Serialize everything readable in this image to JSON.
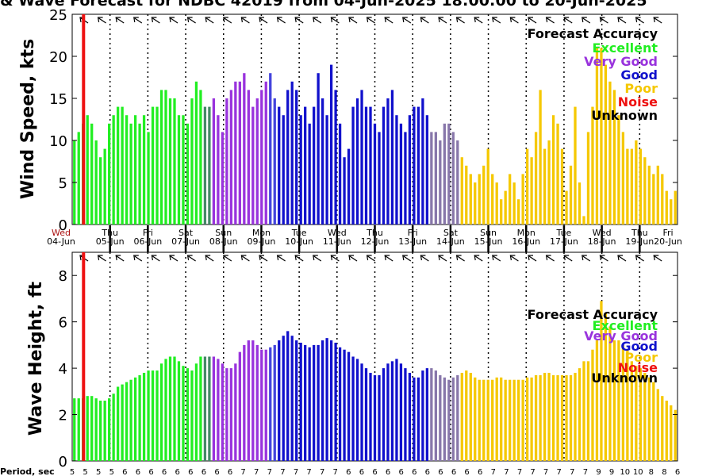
{
  "title": "& Wave Forecast for NDBC 42019 from 04-Jun-2025 18:00:00 to 20-Jun-2025",
  "colors": {
    "Excellent": "#22ee22",
    "Very Good": "#9933dd",
    "Good": "#1111cc",
    "Poor": "#f5c800",
    "Noise": "#ee1111",
    "Unknown": "#000000",
    "transition_eg_vg": "#448866",
    "transition_vg_g": "#4444dd",
    "transition_g_p": "#8877aa",
    "marker": "#ee1111"
  },
  "legend": {
    "title": "Forecast Accuracy",
    "entries": [
      {
        "label": "Excellent",
        "color": "#22ee22"
      },
      {
        "label": "Very Good",
        "color": "#9933dd"
      },
      {
        "label": "Good",
        "color": "#1111cc"
      },
      {
        "label": "Poor",
        "color": "#f5c800"
      },
      {
        "label": "Noise",
        "color": "#ee1111"
      },
      {
        "label": "Unknown",
        "color": "#000000"
      }
    ]
  },
  "chart_data": [
    {
      "type": "bar",
      "ylabel": "Wind Speed, kts",
      "ylim": [
        0,
        25
      ],
      "yticks": [
        0,
        5,
        10,
        15,
        20,
        25
      ],
      "xlim_days": [
        0,
        16
      ],
      "marker_day": 0.3,
      "day_labels": [
        {
          "day": "Wed",
          "date": "04-Jun"
        },
        {
          "day": "Thu",
          "date": "05-Jun"
        },
        {
          "day": "Fri",
          "date": "06-Jun"
        },
        {
          "day": "Sat",
          "date": "07-Jun"
        },
        {
          "day": "Sun",
          "date": "08-Jun"
        },
        {
          "day": "Mon",
          "date": "09-Jun"
        },
        {
          "day": "Tue",
          "date": "10-Jun"
        },
        {
          "day": "Wed",
          "date": "11-Jun"
        },
        {
          "day": "Thu",
          "date": "12-Jun"
        },
        {
          "day": "Fri",
          "date": "13-Jun"
        },
        {
          "day": "Sat",
          "date": "14-Jun"
        },
        {
          "day": "Sun",
          "date": "15-Jun"
        },
        {
          "day": "Mon",
          "date": "16-Jun"
        },
        {
          "day": "Tue",
          "date": "17-Jun"
        },
        {
          "day": "Wed",
          "date": "18-Jun"
        },
        {
          "day": "Thu",
          "date": "19-Jun"
        },
        {
          "day": "Fri",
          "date": "20-Jun"
        }
      ],
      "values": [
        10,
        11,
        12,
        13,
        12,
        10,
        8,
        9,
        12,
        13,
        14,
        14,
        13,
        12,
        13,
        12,
        13,
        11,
        14,
        14,
        16,
        16,
        15,
        15,
        13,
        13,
        12,
        15,
        17,
        16,
        14,
        14,
        15,
        13,
        11,
        15,
        16,
        17,
        17,
        18,
        16,
        14,
        15,
        16,
        17,
        18,
        15,
        14,
        13,
        16,
        17,
        16,
        13,
        14,
        12,
        14,
        18,
        15,
        13,
        19,
        16,
        12,
        8,
        9,
        14,
        15,
        16,
        14,
        14,
        12,
        11,
        14,
        15,
        16,
        13,
        12,
        11,
        13,
        14,
        14,
        15,
        13,
        11,
        11,
        10,
        12,
        12,
        11,
        10,
        8,
        7,
        6,
        5,
        6,
        7,
        9,
        6,
        5,
        3,
        4,
        6,
        5,
        3,
        6,
        9,
        8,
        11,
        16,
        9,
        10,
        13,
        12,
        9,
        4,
        7,
        14,
        5,
        1,
        11,
        14,
        21,
        21,
        19,
        17,
        16,
        13,
        11,
        9,
        9,
        10,
        9,
        8,
        7,
        6,
        7,
        6,
        4,
        3,
        4
      ]
    },
    {
      "type": "bar",
      "ylabel": "Wave Height, ft",
      "ylim": [
        0,
        9
      ],
      "yticks": [
        0,
        2,
        4,
        6,
        8
      ],
      "xlim_days": [
        0,
        16
      ],
      "marker_day": 0.3,
      "values": [
        2.7,
        2.7,
        2.7,
        2.8,
        2.8,
        2.7,
        2.6,
        2.6,
        2.7,
        2.9,
        3.2,
        3.3,
        3.4,
        3.5,
        3.6,
        3.7,
        3.8,
        3.9,
        3.9,
        3.9,
        4.2,
        4.4,
        4.5,
        4.5,
        4.3,
        4.1,
        4.0,
        3.9,
        4.2,
        4.5,
        4.5,
        4.5,
        4.5,
        4.4,
        4.2,
        4.0,
        4.0,
        4.2,
        4.7,
        5.0,
        5.2,
        5.2,
        5.0,
        4.8,
        4.8,
        4.9,
        5.0,
        5.2,
        5.4,
        5.6,
        5.4,
        5.2,
        5.1,
        5.0,
        4.9,
        5.0,
        5.0,
        5.2,
        5.3,
        5.2,
        5.1,
        4.9,
        4.8,
        4.7,
        4.5,
        4.4,
        4.2,
        4.0,
        3.8,
        3.7,
        3.7,
        4.0,
        4.2,
        4.3,
        4.4,
        4.2,
        4.0,
        3.8,
        3.6,
        3.6,
        3.9,
        4.0,
        4.0,
        3.9,
        3.7,
        3.6,
        3.5,
        3.6,
        3.7,
        3.8,
        3.9,
        3.8,
        3.6,
        3.5,
        3.5,
        3.5,
        3.5,
        3.6,
        3.6,
        3.5,
        3.5,
        3.5,
        3.5,
        3.5,
        3.6,
        3.6,
        3.7,
        3.7,
        3.8,
        3.8,
        3.7,
        3.7,
        3.7,
        3.7,
        3.7,
        3.8,
        4.0,
        4.3,
        4.3,
        4.8,
        5.2,
        6.9,
        6.4,
        5.8,
        5.2,
        5.2,
        5.0,
        4.8,
        4.3,
        4.1,
        4.0,
        3.8,
        3.6,
        3.4,
        3.1,
        2.8,
        2.6,
        2.4,
        2.2
      ]
    }
  ],
  "period_label": "Period, sec",
  "periods": [
    5,
    5,
    5,
    5,
    6,
    6,
    6,
    6,
    6,
    6,
    6,
    6,
    6,
    7,
    7,
    7,
    7,
    7,
    7,
    7,
    7,
    6,
    6,
    6,
    6,
    6,
    6,
    6,
    6,
    6,
    6,
    6,
    7,
    7,
    7,
    7,
    7,
    7,
    7,
    7,
    9,
    9,
    10,
    10,
    8,
    8,
    6
  ]
}
